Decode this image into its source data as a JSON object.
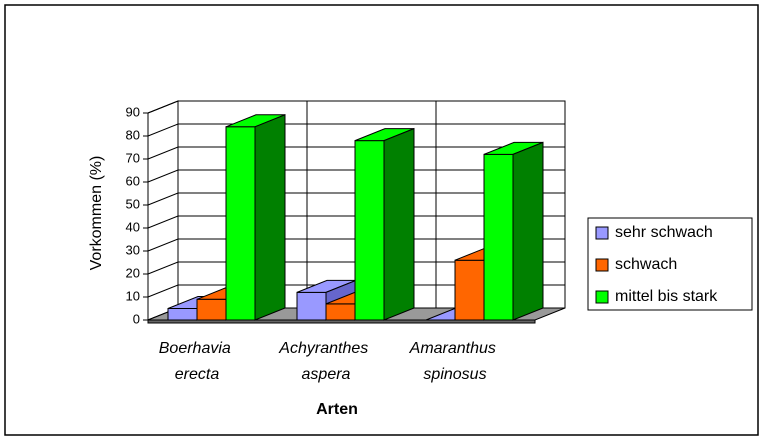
{
  "chart_data": {
    "type": "bar3d",
    "categories": [
      "Boerhavia erecta",
      "Achyranthes aspera",
      "Amaranthus spinosus"
    ],
    "series": [
      {
        "name": "sehr schwach",
        "color": "#9999ff",
        "side": "#6666cc",
        "values": [
          5,
          12,
          0
        ]
      },
      {
        "name": "schwach",
        "color": "#ff6600",
        "side": "#c04c00",
        "values": [
          9,
          7,
          26
        ]
      },
      {
        "name": "mittel bis stark",
        "color": "#00ff00",
        "side": "#008000",
        "values": [
          84,
          78,
          72
        ]
      }
    ],
    "ylim": [
      0,
      90
    ],
    "yticks": [
      0,
      10,
      20,
      30,
      40,
      50,
      60,
      70,
      80,
      90
    ],
    "ylabel": "Vorkommen (%)",
    "xlabel": "Arten",
    "grid": true,
    "legend": "right"
  }
}
